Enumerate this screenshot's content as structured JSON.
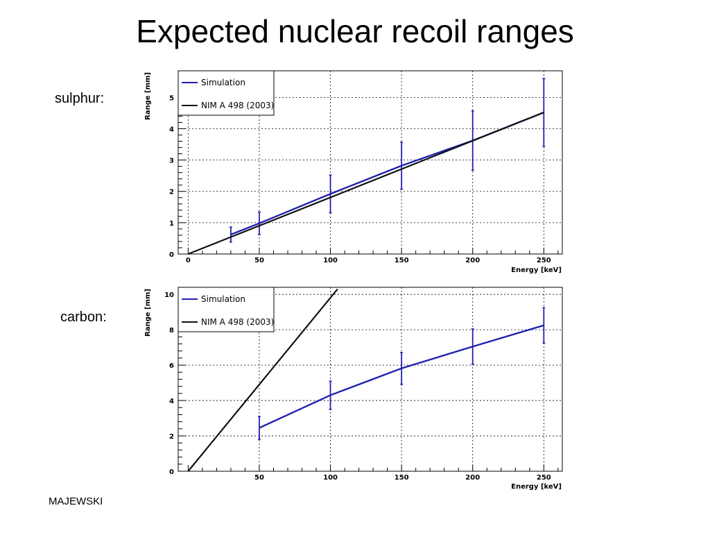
{
  "slide": {
    "title": "Expected nuclear recoil ranges",
    "author": "MAJEWSKI"
  },
  "colors": {
    "simulation": "#2020b0",
    "reference": "#111111",
    "grid": "#000000",
    "frame": "#000000"
  },
  "chart_data": [
    {
      "type": "line",
      "panel_label": "sulphur:",
      "xlabel": "Energy [keV]",
      "ylabel": "Range [mm]",
      "xlim": [
        -7,
        263
      ],
      "ylim": [
        0,
        5.85
      ],
      "x_ticks": [
        0,
        50,
        100,
        150,
        200,
        250
      ],
      "y_ticks": [
        0,
        1,
        2,
        3,
        4,
        5
      ],
      "grid": true,
      "legend": "top-left",
      "series": [
        {
          "name": "Simulation",
          "color": "#2020b0",
          "x": [
            30,
            50,
            100,
            150,
            200,
            250
          ],
          "y": [
            0.62,
            0.98,
            1.92,
            2.82,
            3.62,
            4.52
          ],
          "err": [
            0.24,
            0.36,
            0.6,
            0.75,
            0.95,
            1.08
          ]
        },
        {
          "name": "NIM A 498 (2003)",
          "color": "#111111",
          "x": [
            0,
            250
          ],
          "y": [
            0.0,
            4.52
          ]
        }
      ]
    },
    {
      "type": "line",
      "panel_label": "carbon:",
      "xlabel": "Energy [keV]",
      "ylabel": "Range [mm]",
      "xlim": [
        -7,
        263
      ],
      "ylim": [
        0,
        10.4
      ],
      "x_ticks": [
        50,
        100,
        150,
        200,
        250
      ],
      "y_ticks": [
        0,
        2,
        4,
        6,
        8,
        10
      ],
      "grid": true,
      "legend": "top-left",
      "series": [
        {
          "name": "Simulation",
          "color": "#2020b0",
          "x": [
            50,
            100,
            150,
            200,
            250
          ],
          "y": [
            2.45,
            4.3,
            5.82,
            7.05,
            8.25
          ],
          "err": [
            0.65,
            0.8,
            0.9,
            1.0,
            1.0
          ]
        },
        {
          "name": "NIM A 498 (2003)",
          "color": "#111111",
          "x": [
            0,
            105
          ],
          "y": [
            0.0,
            10.3
          ]
        }
      ]
    }
  ]
}
